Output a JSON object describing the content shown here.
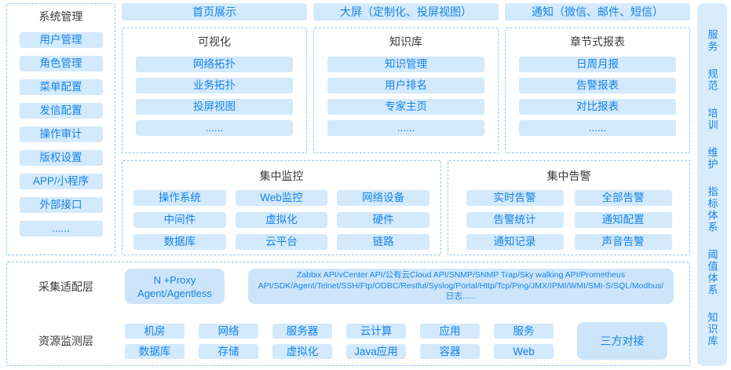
{
  "left_panel": {
    "title": "系统管理",
    "items": [
      "用户管理",
      "角色管理",
      "菜单配置",
      "发信配置",
      "操作审计",
      "版权设置",
      "APP/小程序",
      "外部接口",
      "......"
    ]
  },
  "top_buttons": [
    "首页展示",
    "大屏（定制化、投屏视图）",
    "通知（微信、邮件、短信）"
  ],
  "feature_boxes": [
    {
      "title": "可视化",
      "items": [
        "网络拓扑",
        "业务拓扑",
        "投屏视图",
        "......"
      ]
    },
    {
      "title": "知识库",
      "items": [
        "知识管理",
        "用户排名",
        "专家主页",
        "......"
      ]
    },
    {
      "title": "章节式报表",
      "items": [
        "日周月报",
        "告警报表",
        "对比报表",
        "......"
      ]
    }
  ],
  "monitor_box": {
    "title": "集中监控",
    "items": [
      "操作系统",
      "Web监控",
      "网络设备",
      "中间件",
      "虚拟化",
      "硬件",
      "数据库",
      "云平台",
      "链路"
    ]
  },
  "alarm_box": {
    "title": "集中告警",
    "items": [
      "实时告警",
      "全部告警",
      "告警统计",
      "通知配置",
      "通知记录",
      "声音告警"
    ]
  },
  "bottom_panel": {
    "adapter_label": "采集适配层",
    "proxy_line1": "N +Proxy",
    "proxy_line2": "Agent/Agentless",
    "api_text": "Zabbix API/vCenter API/公有云Cloud API/SNMP/SNMP Trap/Sky walking API/Prometheus API/SDK/Agent/Telnet/SSH/Ftp/ODBC/Restful/Syslog/Portal/Http/Tcp/Ping/JMX/IPMI/WMI/SMI-S/SQL/Modbus/日志......",
    "resource_label": "资源监测层",
    "resource_row1": [
      "机房",
      "网络",
      "服务器",
      "云计算",
      "应用",
      "服务"
    ],
    "resource_row2": [
      "数据库",
      "存储",
      "虚拟化",
      "Java应用",
      "容器",
      "Web"
    ],
    "third_party": "三方对接"
  },
  "right_rail": {
    "items": [
      "服务",
      "规范",
      "培训",
      "维护",
      "指标体系",
      "阈值体系",
      "知识库"
    ]
  },
  "colors": {
    "button_bg": "#d3e9fc",
    "button_bg_large": "#cde5fb",
    "accent_blue": "#1584e6",
    "dashed_border": "#93c6f1",
    "header_text": "#3a3a3a",
    "rail_bg": "#d9ecfb"
  }
}
